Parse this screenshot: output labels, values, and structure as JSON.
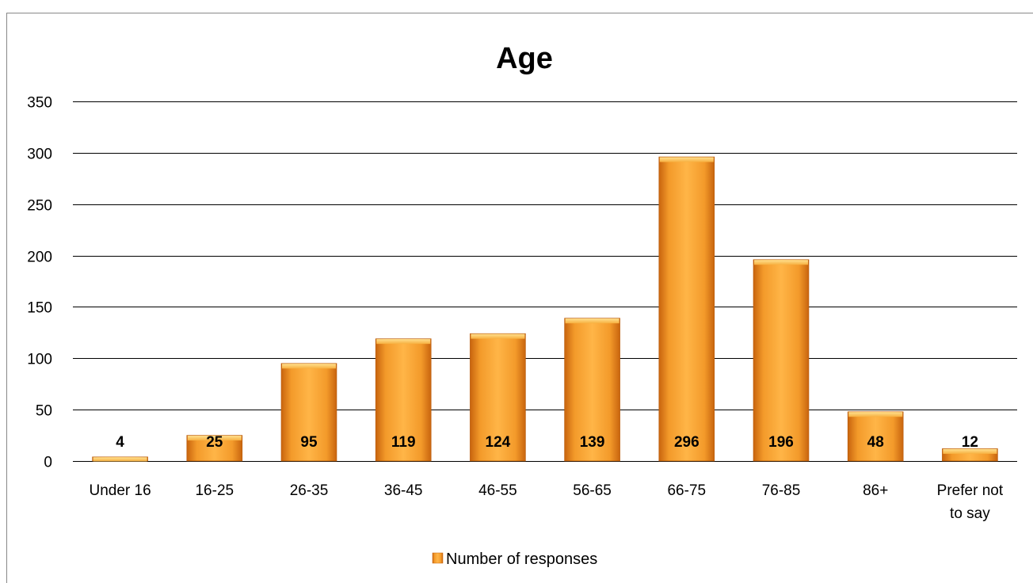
{
  "chart_data": {
    "type": "bar",
    "title": "Age",
    "categories": [
      "Under 16",
      "16-25",
      "26-35",
      "36-45",
      "46-55",
      "56-65",
      "66-75",
      "76-85",
      "86+",
      "Prefer not to say"
    ],
    "category_lines": [
      [
        "Under 16"
      ],
      [
        "16-25"
      ],
      [
        "26-35"
      ],
      [
        "36-45"
      ],
      [
        "46-55"
      ],
      [
        "56-65"
      ],
      [
        "66-75"
      ],
      [
        "76-85"
      ],
      [
        "86+"
      ],
      [
        "Prefer not",
        "to say"
      ]
    ],
    "series": [
      {
        "name": "Number of responses",
        "values": [
          4,
          25,
          95,
          119,
          124,
          139,
          296,
          196,
          48,
          12
        ]
      }
    ],
    "yticks": [
      0,
      50,
      100,
      150,
      200,
      250,
      300,
      350
    ],
    "ylim": [
      0,
      350
    ],
    "grid": true,
    "legend_position": "bottom",
    "data_labels": true,
    "colors": {
      "bar": "#f4a02c",
      "bar_dark": "#c8640e",
      "bar_light": "#ffd27a",
      "grid": "#000000"
    }
  }
}
